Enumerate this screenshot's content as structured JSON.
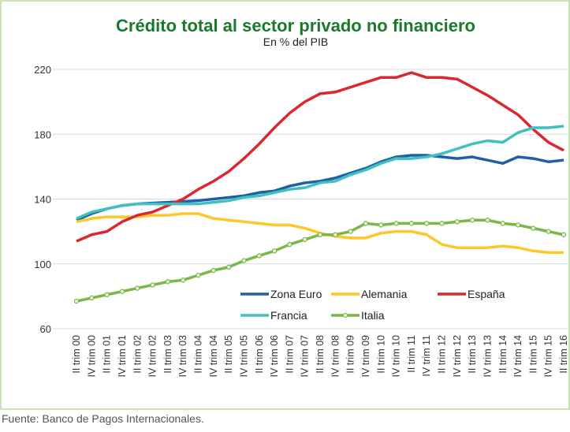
{
  "chart_data": {
    "type": "line",
    "title": "Crédito total al sector privado no financiero",
    "subtitle": "En % del PIB",
    "source": "Fuente: Banco de Pagos Internacionales.",
    "categories": [
      "II trim 00",
      "IV trim 00",
      "II trim 01",
      "IV trim 01",
      "II trim 02",
      "IV trim 02",
      "II trim 03",
      "IV trim 03",
      "II trim 04",
      "IV trim 04",
      "II trim 05",
      "IV trim 05",
      "II trim 06",
      "IV trim 06",
      "II trim 07",
      "IV trim 07",
      "II trim 08",
      "IV trim 08",
      "II trim 09",
      "IV trim 09",
      "II trim 10",
      "IV trim 10",
      "II trim 11",
      "IV trim 11",
      "II trim 12",
      "IV trim 12",
      "II trim 13",
      "IV trim 13",
      "II trim 14",
      "IV trim 14",
      "II trim 15",
      "IV trim 15",
      "II trim 16"
    ],
    "series": [
      {
        "name": "Zona Euro",
        "color": "#1f5fa8",
        "values": [
          127,
          131,
          134,
          136,
          137,
          137.5,
          138,
          138.5,
          139,
          140,
          141,
          142,
          144,
          145,
          148,
          150,
          151,
          153,
          156,
          159,
          163,
          166,
          167,
          167,
          166,
          165,
          166,
          164,
          162,
          166,
          165,
          163,
          164
        ]
      },
      {
        "name": "Alemania",
        "color": "#ffc629",
        "values": [
          126,
          128,
          129,
          129,
          129,
          130,
          130,
          131,
          131,
          128,
          127,
          126,
          125,
          124,
          124,
          122,
          119,
          117,
          116,
          116,
          119,
          120,
          120,
          118,
          112,
          110,
          110,
          110,
          111,
          110,
          108,
          107,
          107
        ]
      },
      {
        "name": "España",
        "color": "#d9282f",
        "values": [
          114,
          118,
          120,
          126,
          130,
          132,
          136,
          140,
          146,
          151,
          157,
          165,
          174,
          184,
          193,
          200,
          205,
          206,
          209,
          212,
          215,
          215,
          218,
          215,
          215,
          214,
          209,
          204,
          198,
          192,
          183,
          175,
          170
        ]
      },
      {
        "name": "Francia",
        "color": "#3fc1c0",
        "values": [
          128,
          132,
          134,
          136,
          137,
          137,
          137,
          137,
          137,
          138,
          139,
          141,
          142,
          144,
          146,
          147,
          150,
          151,
          155,
          158,
          162,
          165,
          165,
          166,
          168,
          171,
          174,
          176,
          175,
          181,
          184,
          184,
          185
        ]
      },
      {
        "name": "Italia",
        "color": "#7ab648",
        "marker": true,
        "values": [
          77,
          79,
          81,
          83,
          85,
          87,
          89,
          90,
          93,
          96,
          98,
          102,
          105,
          108,
          112,
          115,
          118,
          118,
          120,
          125,
          124,
          125,
          125,
          125,
          125,
          126,
          127,
          127,
          125,
          124,
          122,
          120,
          118
        ]
      }
    ],
    "ylim": [
      60,
      220
    ],
    "yticks": [
      60,
      100,
      140,
      180,
      220
    ],
    "grid": true
  }
}
